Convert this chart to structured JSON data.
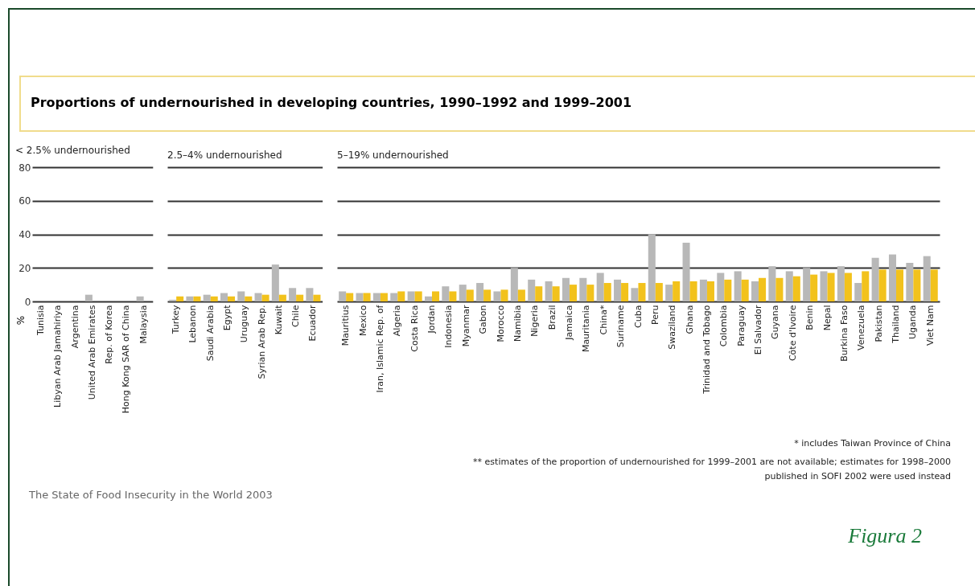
{
  "chart_data": [
    {
      "type": "bar",
      "title": "Proportions of undernourished in developing countries, 1990–1992 and 1999–2001",
      "subtitle": "< 2.5% undernourished",
      "ylabel": "%",
      "categories": [
        "Tunisia",
        "Libyan Arab Jamahiriya",
        "Argentina",
        "United Arab Emirates",
        "Rep. of Korea",
        "Hong Kong SAR of China",
        "Malaysia"
      ],
      "series": [
        {
          "color": "#b8b8b8",
          "values": [
            0,
            0,
            0,
            4,
            0,
            0,
            3
          ]
        },
        {
          "color": "#f2c21c",
          "values": [
            0,
            0,
            0,
            0,
            0,
            0,
            0
          ]
        }
      ],
      "ylim": [
        0,
        80
      ],
      "yticks": [
        0,
        20,
        40,
        60,
        80
      ],
      "grid": "y"
    },
    {
      "type": "bar",
      "subtitle": "2.5–4% undernourished",
      "categories": [
        "Turkey",
        "Lebanon",
        "Saudi Arabia",
        "Egypt",
        "Uruguay",
        "Syrian Arab Rep.",
        "Kuwait",
        "Chile",
        "Ecuador"
      ],
      "series": [
        {
          "color": "#b8b8b8",
          "values": [
            1,
            3,
            4,
            5,
            6,
            5,
            22,
            8,
            8
          ]
        },
        {
          "color": "#f2c21c",
          "values": [
            3,
            3,
            3,
            3,
            3,
            4,
            4,
            4,
            4
          ]
        }
      ],
      "ylim": [
        0,
        80
      ],
      "yticks": [
        0,
        20,
        40,
        60,
        80
      ],
      "grid": "y",
      "tick_labels": "x"
    },
    {
      "type": "bar",
      "subtitle": "5–19% undernourished",
      "categories": [
        "Mauritius",
        "Mexico",
        "Iran, Islamic Rep. of",
        "Algeria",
        "Costa Rica",
        "Jordan",
        "Indonesia",
        "Myanmar",
        "Gabon",
        "Morocco",
        "Namibia",
        "Nigeria",
        "Brazil",
        "Jamaica",
        "Mauritania",
        "China*",
        "Suriname",
        "Cuba",
        "Peru",
        "Swaziland",
        "Ghana",
        "Trinidad and Tobago",
        "Colombia",
        "Paraguay",
        "El Salvador",
        "Guyana",
        "Côte d'Ivoire",
        "Benin",
        "Nepal",
        "Burkina Faso",
        "Venezuela",
        "Pakistan",
        "Thailand",
        "Uganda",
        "Viet Nam"
      ],
      "series": [
        {
          "color": "#b8b8b8",
          "values": [
            6,
            5,
            5,
            5,
            6,
            3,
            9,
            10,
            11,
            6,
            20,
            13,
            12,
            14,
            14,
            17,
            13,
            8,
            40,
            10,
            35,
            13,
            17,
            18,
            12,
            21,
            18,
            20,
            18,
            21,
            11,
            26,
            28,
            23,
            27
          ]
        },
        {
          "color": "#f2c21c",
          "values": [
            5,
            5,
            5,
            6,
            6,
            6,
            6,
            7,
            7,
            7,
            7,
            9,
            9,
            10,
            10,
            11,
            11,
            11,
            11,
            12,
            12,
            12,
            13,
            13,
            14,
            14,
            15,
            16,
            17,
            17,
            18,
            19,
            19,
            19,
            19
          ]
        }
      ],
      "ylim": [
        0,
        80
      ],
      "yticks": [
        0,
        20,
        40,
        60,
        80
      ],
      "grid": "y",
      "tick_labels": "x",
      "annotations": [
        "* includes Taiwan Province of China",
        "** estimates of the proportion of undernourished for 1999–2001 are not available; estimates for 1998–2000 published in SOFI 2002 were used instead",
        "The State of Food Insecurity in the World 2003",
        "Figura 2"
      ]
    }
  ]
}
